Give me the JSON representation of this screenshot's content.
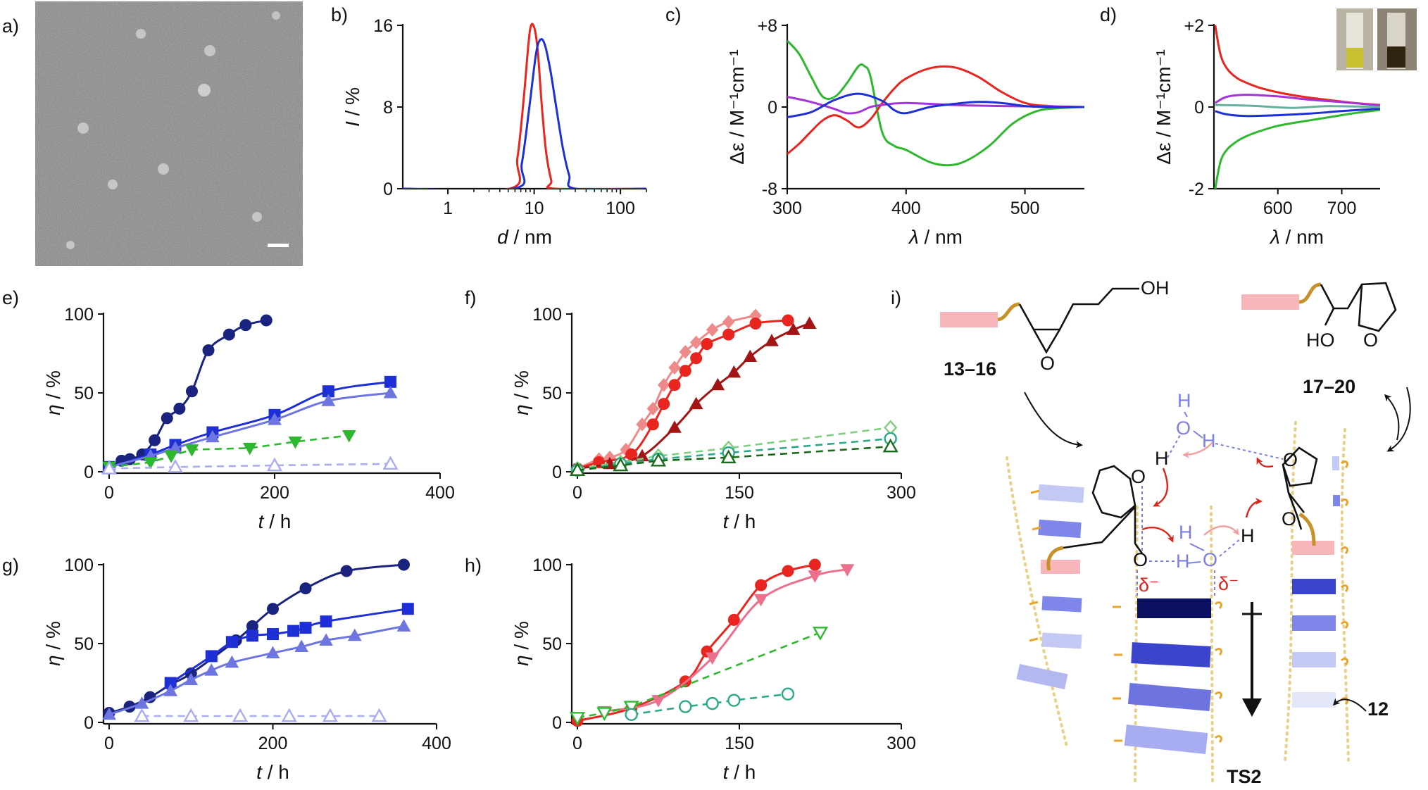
{
  "panel_labels": [
    "a)",
    "b)",
    "c)",
    "d)",
    "e)",
    "f)",
    "g)",
    "h)",
    "i)"
  ],
  "colors": {
    "navy": "#1a237e",
    "blue": "#1f2fd6",
    "lightblue": "#6d75e0",
    "paleblue": "#a9acef",
    "green": "#2db82d",
    "red": "#e8251f",
    "darkred": "#a31515",
    "pink": "#ef8a8a",
    "purple": "#a434d6",
    "teal": "#2aa889",
    "darkgreen": "#1c6b1c",
    "lightgreen": "#7fcf7f"
  },
  "icons": [
    "tem-micrograph-image",
    "scale-bar",
    "cuvette-photo"
  ],
  "chart_data": [
    {
      "id": "b",
      "type": "line",
      "xlabel_var": "d",
      "xlabel_unit": " / nm",
      "ylabel_var": "I",
      "ylabel_unit": " / %",
      "xscale": "log",
      "xlim": [
        0.3,
        200
      ],
      "ylim": [
        0,
        16
      ],
      "xticks": [
        1,
        10,
        100
      ],
      "yticks": [
        0,
        8,
        16
      ],
      "series": [
        {
          "color": "#e8251f",
          "x": [
            0.3,
            5.2,
            6.4,
            7.6,
            8.9,
            10.0,
            11.0,
            12.3,
            13.8,
            15.8,
            17.5,
            200
          ],
          "y": [
            0,
            0,
            3,
            9,
            15.4,
            15.8,
            13.5,
            8,
            3.5,
            0.8,
            0,
            0
          ]
        },
        {
          "color": "#1f2fd6",
          "x": [
            0.3,
            5.8,
            7.2,
            8.8,
            10.5,
            11.8,
            13.3,
            15.5,
            18,
            21.5,
            25.5,
            30,
            200
          ],
          "y": [
            0,
            0,
            2.5,
            8,
            13.2,
            14.6,
            14.1,
            11.5,
            8,
            4,
            1.3,
            0,
            0
          ]
        }
      ]
    },
    {
      "id": "c",
      "type": "line",
      "xlabel_var": "λ",
      "xlabel_unit": " / nm",
      "ylabel": "Δε / M⁻¹cm⁻¹",
      "xlim": [
        300,
        550
      ],
      "ylim": [
        -8,
        8
      ],
      "xticks": [
        300,
        400,
        500
      ],
      "ytick_labels": [
        "-8",
        "0",
        "+8"
      ],
      "yticks": [
        -8,
        0,
        8
      ],
      "series": [
        {
          "color": "#2db82d",
          "x": [
            300,
            310,
            320,
            330,
            340,
            350,
            360,
            365,
            370,
            380,
            390,
            400,
            420,
            435,
            450,
            470,
            490,
            510,
            530,
            550
          ],
          "y": [
            6.5,
            5.2,
            3,
            1,
            1,
            2.3,
            4,
            4,
            3,
            -2.5,
            -3.8,
            -4.2,
            -5.4,
            -5.7,
            -5.3,
            -3.8,
            -1.6,
            -0.4,
            -0.1,
            0
          ]
        },
        {
          "color": "#e8251f",
          "x": [
            300,
            310,
            320,
            330,
            340,
            350,
            360,
            370,
            380,
            390,
            400,
            420,
            440,
            460,
            480,
            500,
            520,
            550
          ],
          "y": [
            -4.6,
            -3.6,
            -2.4,
            -1.3,
            -0.8,
            -1.3,
            -2,
            -1.2,
            0.4,
            1.8,
            2.8,
            3.8,
            3.9,
            3,
            1.5,
            0.4,
            0.1,
            0
          ]
        },
        {
          "color": "#a434d6",
          "x": [
            300,
            320,
            340,
            350,
            360,
            370,
            380,
            400,
            440,
            480,
            550
          ],
          "y": [
            1,
            0.5,
            -0.2,
            -0.6,
            -0.5,
            0,
            0.2,
            0.4,
            0.2,
            0.1,
            0
          ]
        },
        {
          "color": "#1f2fd6",
          "x": [
            300,
            320,
            340,
            360,
            380,
            390,
            400,
            420,
            440,
            460,
            480,
            500,
            520,
            550
          ],
          "y": [
            -1,
            -0.5,
            0.7,
            1.3,
            0.6,
            -0.3,
            -0.6,
            0,
            0.3,
            0.5,
            0.4,
            0.1,
            0,
            0
          ]
        }
      ]
    },
    {
      "id": "d",
      "type": "line",
      "xlabel_var": "λ",
      "xlabel_unit": " / nm",
      "ylabel": "Δε / M⁻¹cm⁻¹",
      "xlim": [
        500,
        760
      ],
      "ylim": [
        -2,
        2
      ],
      "xticks": [
        600,
        700
      ],
      "ytick_labels": [
        "-2",
        "0",
        "+2"
      ],
      "yticks": [
        -2,
        0,
        2
      ],
      "series": [
        {
          "color": "#e8251f",
          "x": [
            502,
            510,
            520,
            535,
            550,
            570,
            600,
            640,
            680,
            720,
            760
          ],
          "y": [
            2.0,
            1.3,
            0.95,
            0.72,
            0.6,
            0.48,
            0.36,
            0.25,
            0.17,
            0.1,
            0.05
          ]
        },
        {
          "color": "#2db82d",
          "x": [
            502,
            510,
            520,
            535,
            550,
            570,
            600,
            640,
            680,
            720,
            760
          ],
          "y": [
            -2.0,
            -1.35,
            -1.05,
            -0.85,
            -0.72,
            -0.6,
            -0.46,
            -0.35,
            -0.25,
            -0.15,
            -0.07
          ]
        },
        {
          "color": "#a434d6",
          "x": [
            502,
            520,
            550,
            600,
            650,
            700,
            760
          ],
          "y": [
            0.1,
            0.25,
            0.3,
            0.26,
            0.18,
            0.12,
            0.04
          ]
        },
        {
          "color": "#1f2fd6",
          "x": [
            502,
            520,
            550,
            600,
            650,
            700,
            760
          ],
          "y": [
            -0.1,
            -0.18,
            -0.22,
            -0.2,
            -0.16,
            -0.1,
            -0.04
          ]
        },
        {
          "color": "#66b0a0",
          "x": [
            502,
            560,
            620,
            680,
            760
          ],
          "y": [
            0.05,
            0.03,
            -0.02,
            0.02,
            0
          ]
        }
      ]
    },
    {
      "id": "e",
      "type": "scatter",
      "xlabel_var": "t",
      "xlabel_unit": " / h",
      "ylabel_var": "η",
      "ylabel_unit": " / %",
      "xlim": [
        0,
        400
      ],
      "ylim": [
        0,
        100
      ],
      "xticks": [
        0,
        200,
        400
      ],
      "yticks": [
        0,
        50,
        100
      ],
      "series": [
        {
          "color": "#1a237e",
          "marker": "circle",
          "fit": "smooth",
          "x": [
            0,
            15,
            25,
            40,
            55,
            70,
            85,
            100,
            120,
            145,
            165,
            190
          ],
          "y": [
            2,
            7,
            8,
            11,
            20,
            34,
            40,
            51,
            77,
            87,
            93,
            96
          ]
        },
        {
          "color": "#1f2fd6",
          "marker": "square",
          "fit": "smooth",
          "x": [
            0,
            50,
            80,
            125,
            200,
            265,
            340
          ],
          "y": [
            3,
            11,
            17,
            25,
            36,
            51,
            57
          ]
        },
        {
          "color": "#6d75e0",
          "marker": "triangle",
          "fit": "smooth",
          "x": [
            0,
            50,
            80,
            125,
            200,
            265,
            340
          ],
          "y": [
            3,
            10,
            15,
            22,
            33,
            45,
            50
          ]
        },
        {
          "color": "#2db82d",
          "marker": "triangle-down",
          "dashed": true,
          "x": [
            0,
            50,
            75,
            100,
            170,
            225,
            290
          ],
          "y": [
            3,
            6,
            10,
            14,
            15,
            19,
            23
          ]
        },
        {
          "color": "#a9acef",
          "marker": "triangle-open",
          "dashed": true,
          "x": [
            0,
            80,
            200,
            340
          ],
          "y": [
            2,
            3,
            4,
            5
          ]
        }
      ]
    },
    {
      "id": "f",
      "type": "scatter",
      "xlabel_var": "t",
      "xlabel_unit": " / h",
      "ylabel_var": "η",
      "ylabel_unit": " / %",
      "xlim": [
        0,
        300
      ],
      "ylim": [
        0,
        100
      ],
      "xticks": [
        0,
        150,
        300
      ],
      "yticks": [
        0,
        50,
        100
      ],
      "series": [
        {
          "color": "#ef8a8a",
          "marker": "diamond",
          "fit": "smooth",
          "x": [
            0,
            20,
            30,
            45,
            60,
            70,
            80,
            90,
            100,
            110,
            125,
            140,
            165
          ],
          "y": [
            2,
            8,
            9,
            14,
            30,
            40,
            55,
            66,
            76,
            82,
            90,
            95,
            99
          ]
        },
        {
          "color": "#e8251f",
          "marker": "circle",
          "fit": "smooth",
          "x": [
            0,
            20,
            50,
            70,
            80,
            90,
            100,
            110,
            120,
            140,
            165,
            195
          ],
          "y": [
            2,
            6,
            11,
            30,
            43,
            55,
            64,
            72,
            81,
            87,
            94,
            96
          ]
        },
        {
          "color": "#a31515",
          "marker": "triangle",
          "fit": "smooth",
          "x": [
            0,
            30,
            60,
            90,
            110,
            130,
            145,
            160,
            180,
            200,
            215
          ],
          "y": [
            2,
            5,
            10,
            28,
            43,
            55,
            63,
            73,
            83,
            90,
            94
          ]
        },
        {
          "color": "#7fcf7f",
          "marker": "diamond-open",
          "dashed": true,
          "x": [
            0,
            40,
            75,
            140,
            290
          ],
          "y": [
            2,
            6,
            10,
            15,
            28
          ]
        },
        {
          "color": "#2aa889",
          "marker": "circle-open",
          "dashed": true,
          "x": [
            0,
            40,
            75,
            140,
            290
          ],
          "y": [
            1,
            5,
            8,
            12,
            21
          ]
        },
        {
          "color": "#1c6b1c",
          "marker": "triangle-open",
          "dashed": true,
          "x": [
            0,
            40,
            75,
            140,
            290
          ],
          "y": [
            1,
            4,
            7,
            9,
            16
          ]
        }
      ]
    },
    {
      "id": "g",
      "type": "scatter",
      "xlabel_var": "t",
      "xlabel_unit": " / h",
      "ylabel_var": "η",
      "ylabel_unit": " / %",
      "xlim": [
        0,
        400
      ],
      "ylim": [
        0,
        100
      ],
      "xticks": [
        0,
        200,
        400
      ],
      "yticks": [
        0,
        50,
        100
      ],
      "series": [
        {
          "color": "#1a237e",
          "marker": "circle",
          "fit": "smooth",
          "x": [
            0,
            25,
            50,
            75,
            100,
            155,
            175,
            200,
            240,
            290,
            360
          ],
          "y": [
            6,
            10,
            16,
            24,
            31,
            52,
            61,
            72,
            85,
            96,
            100
          ]
        },
        {
          "color": "#1f2fd6",
          "marker": "square",
          "fit": "smooth",
          "x": [
            75,
            125,
            150,
            175,
            200,
            225,
            240,
            265,
            365
          ],
          "y": [
            25,
            42,
            51,
            55,
            56,
            58,
            60,
            64,
            72
          ]
        },
        {
          "color": "#6d75e0",
          "marker": "triangle",
          "fit": "smooth",
          "x": [
            0,
            40,
            75,
            100,
            125,
            150,
            200,
            235,
            265,
            300,
            360
          ],
          "y": [
            5,
            12,
            20,
            27,
            33,
            38,
            44,
            48,
            52,
            55,
            61
          ]
        },
        {
          "color": "#a9acef",
          "marker": "triangle-open",
          "dashed": true,
          "x": [
            40,
            100,
            160,
            220,
            270,
            330
          ],
          "y": [
            4,
            4,
            4,
            4,
            4,
            4
          ]
        }
      ]
    },
    {
      "id": "h",
      "type": "scatter",
      "xlabel_var": "t",
      "xlabel_unit": " / h",
      "ylabel_var": "η",
      "ylabel_unit": " / %",
      "xlim": [
        0,
        300
      ],
      "ylim": [
        0,
        100
      ],
      "xticks": [
        0,
        150,
        300
      ],
      "yticks": [
        0,
        50,
        100
      ],
      "series": [
        {
          "color": "#e8251f",
          "marker": "circle",
          "fit": "smooth",
          "x": [
            0,
            50,
            100,
            120,
            145,
            170,
            195,
            220
          ],
          "y": [
            1,
            9,
            26,
            45,
            65,
            87,
            96,
            100
          ]
        },
        {
          "color": "#ec6f8c",
          "marker": "triangle-down",
          "fit": "smooth",
          "x": [
            25,
            75,
            125,
            170,
            220,
            250
          ],
          "y": [
            7,
            14,
            41,
            78,
            93,
            97
          ]
        },
        {
          "color": "#2db82d",
          "marker": "triangle-down-open",
          "dashed": true,
          "x": [
            0,
            25,
            50,
            225
          ],
          "y": [
            3,
            6,
            10,
            57
          ]
        },
        {
          "color": "#2aa889",
          "marker": "circle-open",
          "dashed": true,
          "x": [
            50,
            100,
            125,
            145,
            195
          ],
          "y": [
            5,
            10,
            12,
            14,
            18
          ]
        }
      ]
    }
  ],
  "scheme": {
    "labels": {
      "c13": "13–16",
      "c17": "17–20",
      "c12": "12",
      "ts": "TS2"
    },
    "atoms": {
      "oh_top": "OH",
      "ho_left": "HO",
      "o": "O",
      "h": "H",
      "delta": "δ⁻"
    }
  }
}
